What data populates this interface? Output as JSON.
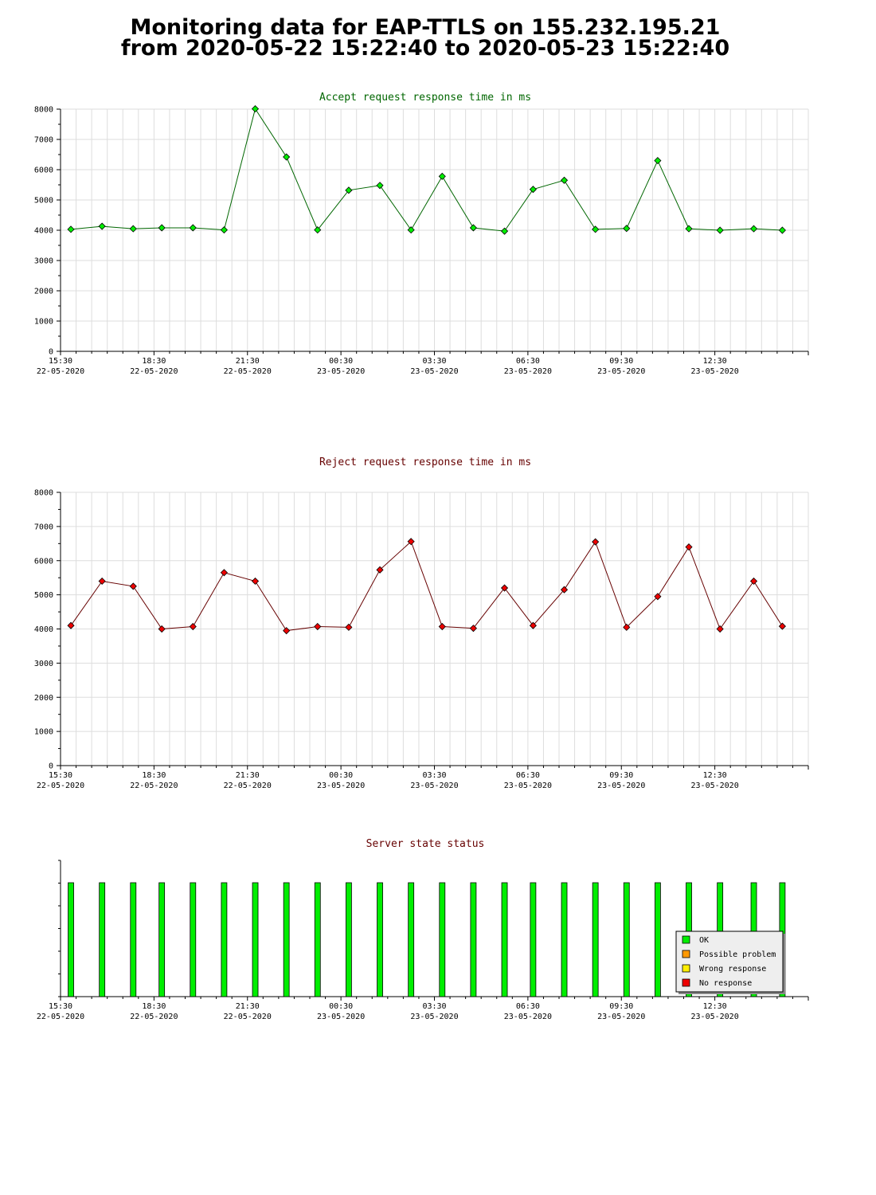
{
  "page": {
    "title_line1": "Monitoring data for EAP-TTLS on 155.232.195.21",
    "title_line2": "from 2020-05-22 15:22:40 to 2020-05-23 15:22:40"
  },
  "colors": {
    "accept_title": "#006600",
    "reject_title": "#660000",
    "status_title": "#660000",
    "accept_line": "#006600",
    "accept_marker": "#00ee00",
    "reject_line": "#660000",
    "reject_marker": "#ee0000",
    "grid": "#dddddd"
  },
  "x_axis": {
    "ticks": [
      {
        "time": "15:30",
        "date": "22-05-2020"
      },
      {
        "time": "18:30",
        "date": "22-05-2020"
      },
      {
        "time": "21:30",
        "date": "22-05-2020"
      },
      {
        "time": "00:30",
        "date": "23-05-2020"
      },
      {
        "time": "03:30",
        "date": "23-05-2020"
      },
      {
        "time": "06:30",
        "date": "23-05-2020"
      },
      {
        "time": "09:30",
        "date": "23-05-2020"
      },
      {
        "time": "12:30",
        "date": "23-05-2020"
      }
    ]
  },
  "chart_data": [
    {
      "type": "line",
      "title": "Accept request response time in ms",
      "ylim": [
        0,
        8000
      ],
      "yticks": [
        0,
        1000,
        2000,
        3000,
        4000,
        5000,
        6000,
        7000,
        8000
      ],
      "grid": true,
      "x": [
        "15:50",
        "16:50",
        "17:50",
        "18:45",
        "19:45",
        "20:45",
        "21:45",
        "22:45",
        "23:45",
        "00:45",
        "01:45",
        "02:45",
        "03:45",
        "04:45",
        "05:45",
        "06:40",
        "07:40",
        "08:40",
        "09:40",
        "10:40",
        "11:40",
        "12:40",
        "13:45",
        "14:40"
      ],
      "values": [
        4030,
        4130,
        4050,
        4080,
        4080,
        4010,
        8010,
        6420,
        4010,
        5320,
        5480,
        4010,
        5780,
        4080,
        3970,
        5350,
        5650,
        4030,
        4060,
        6300,
        4050,
        4000,
        4050,
        4000
      ]
    },
    {
      "type": "line",
      "title": "Reject request response time in ms",
      "ylim": [
        0,
        8000
      ],
      "yticks": [
        0,
        1000,
        2000,
        3000,
        4000,
        5000,
        6000,
        7000,
        8000
      ],
      "grid": true,
      "x": [
        "15:50",
        "16:50",
        "17:50",
        "18:45",
        "19:45",
        "20:45",
        "21:45",
        "22:45",
        "23:45",
        "00:45",
        "01:45",
        "02:45",
        "03:45",
        "04:45",
        "05:45",
        "06:40",
        "07:40",
        "08:40",
        "09:40",
        "10:40",
        "11:40",
        "12:40",
        "13:45",
        "14:40"
      ],
      "values": [
        4100,
        5400,
        5250,
        4000,
        4070,
        5650,
        5400,
        3950,
        4070,
        4050,
        5730,
        6560,
        4070,
        4020,
        5200,
        4100,
        5150,
        6550,
        4050,
        4950,
        6400,
        4000,
        5400,
        4080
      ]
    },
    {
      "type": "bar",
      "title": "Server state status",
      "x": [
        "15:50",
        "16:50",
        "17:50",
        "18:45",
        "19:45",
        "20:45",
        "21:45",
        "22:45",
        "23:45",
        "00:45",
        "01:45",
        "02:45",
        "03:45",
        "04:45",
        "05:45",
        "06:40",
        "07:40",
        "08:40",
        "09:40",
        "10:40",
        "11:40",
        "12:40",
        "13:45",
        "14:40"
      ],
      "status": [
        "OK",
        "OK",
        "OK",
        "OK",
        "OK",
        "OK",
        "OK",
        "OK",
        "OK",
        "OK",
        "OK",
        "OK",
        "OK",
        "OK",
        "OK",
        "OK",
        "OK",
        "OK",
        "OK",
        "OK",
        "OK",
        "OK",
        "OK",
        "OK"
      ],
      "legend": [
        {
          "label": "OK",
          "color": "#00ee00"
        },
        {
          "label": "Possible problem",
          "color": "#ff9900"
        },
        {
          "label": "Wrong response",
          "color": "#ffee00"
        },
        {
          "label": "No response",
          "color": "#ee0000"
        }
      ],
      "legend_placement": "bottom-right"
    }
  ]
}
